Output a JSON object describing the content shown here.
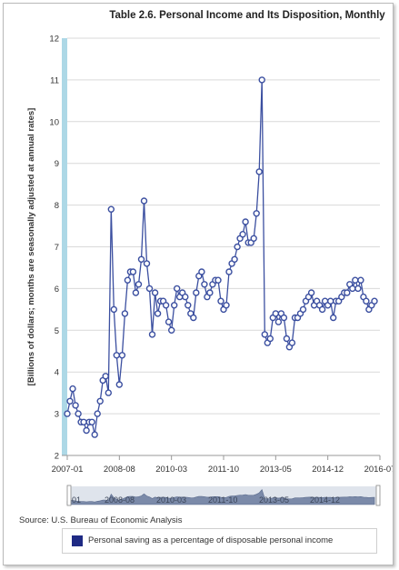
{
  "colors": {
    "series": "#3b4fa0",
    "series_fill": "#ffffff",
    "accent_band": "#add8e6",
    "navigator_fill": "#7b8aa9",
    "navigator_bg": "#dfe4ec",
    "grid": "#d9d9d9",
    "legend_swatch": "#1f2a84"
  },
  "source": "Source: U.S. Bureau of Economic Analysis",
  "legend": {
    "label": "Personal saving as a percentage of disposable personal income"
  },
  "navigator_labels": [
    "-01",
    "2008-08",
    "2010-03",
    "2011-10",
    "2013-05",
    "2014-12"
  ],
  "chart_data": {
    "type": "line",
    "title": "Table 2.6. Personal Income and Its Disposition, Monthly",
    "ylabel": "[Billions of dollars; months are seasonally adjusted at annual rates]",
    "xlabel": "",
    "ylim": [
      2,
      12
    ],
    "y_ticks": [
      2,
      3,
      4,
      5,
      6,
      7,
      8,
      9,
      10,
      11,
      12
    ],
    "x_ticks": [
      "2007-01",
      "2008-08",
      "2010-03",
      "2011-10",
      "2013-05",
      "2014-12",
      "2016-07"
    ],
    "x_start": "2007-01",
    "x_end": "2016-07",
    "grid": true,
    "legend_position": "bottom",
    "series": [
      {
        "name": "Personal saving as a percentage of disposable personal income",
        "values": [
          3.0,
          3.3,
          3.6,
          3.2,
          3.0,
          2.8,
          2.8,
          2.6,
          2.8,
          2.8,
          2.5,
          3.0,
          3.3,
          3.8,
          3.9,
          3.5,
          7.9,
          5.5,
          4.4,
          3.7,
          4.4,
          5.4,
          6.2,
          6.4,
          6.4,
          5.9,
          6.1,
          6.7,
          8.1,
          6.6,
          6.0,
          4.9,
          5.9,
          5.4,
          5.7,
          5.7,
          5.6,
          5.2,
          5.0,
          5.6,
          6.0,
          5.8,
          5.9,
          5.8,
          5.6,
          5.4,
          5.3,
          5.9,
          6.3,
          6.4,
          6.1,
          5.8,
          5.9,
          6.1,
          6.2,
          6.2,
          5.7,
          5.5,
          5.6,
          6.4,
          6.6,
          6.7,
          7.0,
          7.2,
          7.3,
          7.6,
          7.1,
          7.1,
          7.2,
          7.8,
          8.8,
          11.0,
          4.9,
          4.7,
          4.8,
          5.3,
          5.4,
          5.2,
          5.4,
          5.3,
          4.8,
          4.6,
          4.7,
          5.3,
          5.3,
          5.4,
          5.5,
          5.7,
          5.8,
          5.9,
          5.6,
          5.7,
          5.6,
          5.5,
          5.7,
          5.6,
          5.7,
          5.3,
          5.7,
          5.7,
          5.8,
          5.9,
          5.9,
          6.1,
          6.0,
          6.2,
          6.0,
          6.2,
          5.8,
          5.7,
          5.5,
          5.6,
          5.7
        ]
      }
    ]
  }
}
